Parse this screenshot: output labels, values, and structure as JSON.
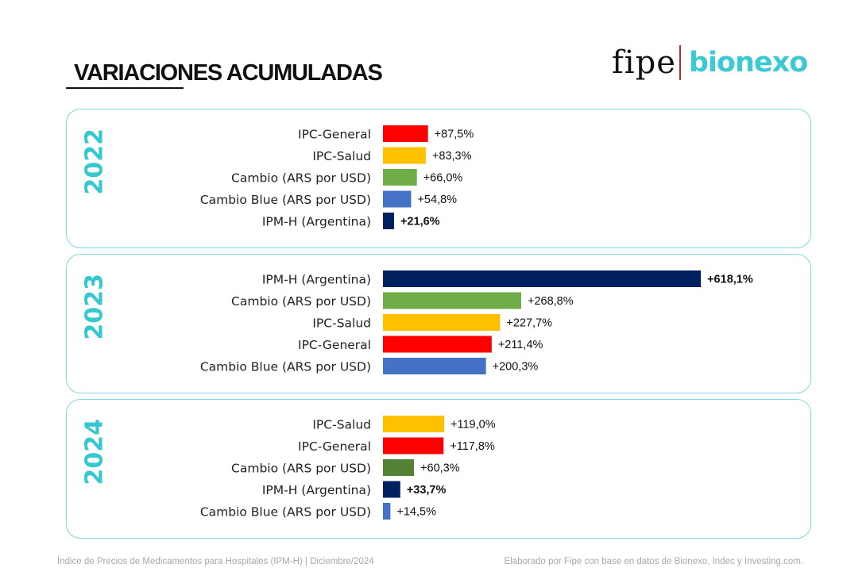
{
  "header": {
    "title": "VARIACIONES ACUMULADAS",
    "logo_left": "fipe",
    "logo_right": "bionexo"
  },
  "colors": {
    "ipc_general": "#ff0000",
    "ipc_salud": "#ffc000",
    "cambio": "#70ad47",
    "cambio_2024": "#548235",
    "cambio_blue": "#4472c4",
    "ipm_h": "#002060",
    "panel_border": "#7fd8dc",
    "year_text": "#35c8d0"
  },
  "chart_data": [
    {
      "type": "bar",
      "orientation": "horizontal",
      "title": "2022",
      "categories": [
        "IPC-General",
        "IPC-Salud",
        "Cambio (ARS por USD)",
        "Cambio Blue (ARS por USD)",
        "IPM-H (Argentina)"
      ],
      "values": [
        87.5,
        83.3,
        66.0,
        54.8,
        21.6
      ],
      "labels": [
        "+87,5%",
        "+83,3%",
        "+66,0%",
        "+54,8%",
        "+21,6%"
      ],
      "colors": [
        "#ff0000",
        "#ffc000",
        "#70ad47",
        "#4472c4",
        "#002060"
      ],
      "bold": [
        false,
        false,
        false,
        false,
        true
      ],
      "xlim": [
        0,
        620
      ]
    },
    {
      "type": "bar",
      "orientation": "horizontal",
      "title": "2023",
      "categories": [
        "IPM-H (Argentina)",
        "Cambio (ARS por USD)",
        "IPC-Salud",
        "IPC-General",
        "Cambio Blue (ARS por USD)"
      ],
      "values": [
        618.1,
        268.8,
        227.7,
        211.4,
        200.3
      ],
      "labels": [
        "+618,1%",
        "+268,8%",
        "+227,7%",
        "+211,4%",
        "+200,3%"
      ],
      "colors": [
        "#002060",
        "#70ad47",
        "#ffc000",
        "#ff0000",
        "#4472c4"
      ],
      "bold": [
        true,
        false,
        false,
        false,
        false
      ],
      "xlim": [
        0,
        620
      ]
    },
    {
      "type": "bar",
      "orientation": "horizontal",
      "title": "2024",
      "categories": [
        "IPC-Salud",
        "IPC-General",
        "Cambio (ARS por USD)",
        "IPM-H (Argentina)",
        "Cambio Blue (ARS por USD)"
      ],
      "values": [
        119.0,
        117.8,
        60.3,
        33.7,
        14.5
      ],
      "labels": [
        "+119,0%",
        "+117,8%",
        "+60,3%",
        "+33,7%",
        "+14,5%"
      ],
      "colors": [
        "#ffc000",
        "#ff0000",
        "#548235",
        "#002060",
        "#4472c4"
      ],
      "bold": [
        false,
        false,
        false,
        true,
        false
      ],
      "xlim": [
        0,
        620
      ]
    }
  ],
  "footer": {
    "left": "Índice de Precios de Medicamentos para Hospitales (IPM-H)  |  Diciembre/2024",
    "right": "Elaborado por Fipe con base en datos de Bionexo, Indec y Investing.com."
  }
}
